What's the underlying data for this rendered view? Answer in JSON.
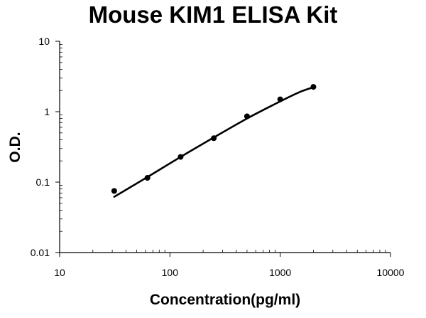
{
  "chart_data": {
    "type": "scatter",
    "title": "Mouse KIM1 ELISA Kit",
    "xlabel": "Concentration(pg/ml)",
    "ylabel": "O.D.",
    "xscale": "log",
    "yscale": "log",
    "xlim": [
      10,
      10000
    ],
    "ylim": [
      0.01,
      10
    ],
    "xticks": [
      10,
      100,
      1000,
      10000
    ],
    "xtick_labels": [
      "10",
      "100",
      "1000",
      "10000"
    ],
    "yticks": [
      0.01,
      0.1,
      1,
      10
    ],
    "ytick_labels": [
      "0.01",
      "0.1",
      "1",
      "10"
    ],
    "grid": false,
    "points": {
      "x": [
        31.25,
        62.5,
        125,
        250,
        500,
        1000,
        2000
      ],
      "y": [
        0.075,
        0.115,
        0.228,
        0.42,
        0.86,
        1.5,
        2.25
      ]
    },
    "fit_curve": {
      "x": [
        31.25,
        62.5,
        125,
        250,
        500,
        1000,
        1500,
        2000
      ],
      "y": [
        0.062,
        0.118,
        0.228,
        0.43,
        0.8,
        1.4,
        1.9,
        2.22
      ]
    },
    "colors": {
      "points": "#000000",
      "curve": "#000000",
      "axis": "#000000"
    }
  }
}
